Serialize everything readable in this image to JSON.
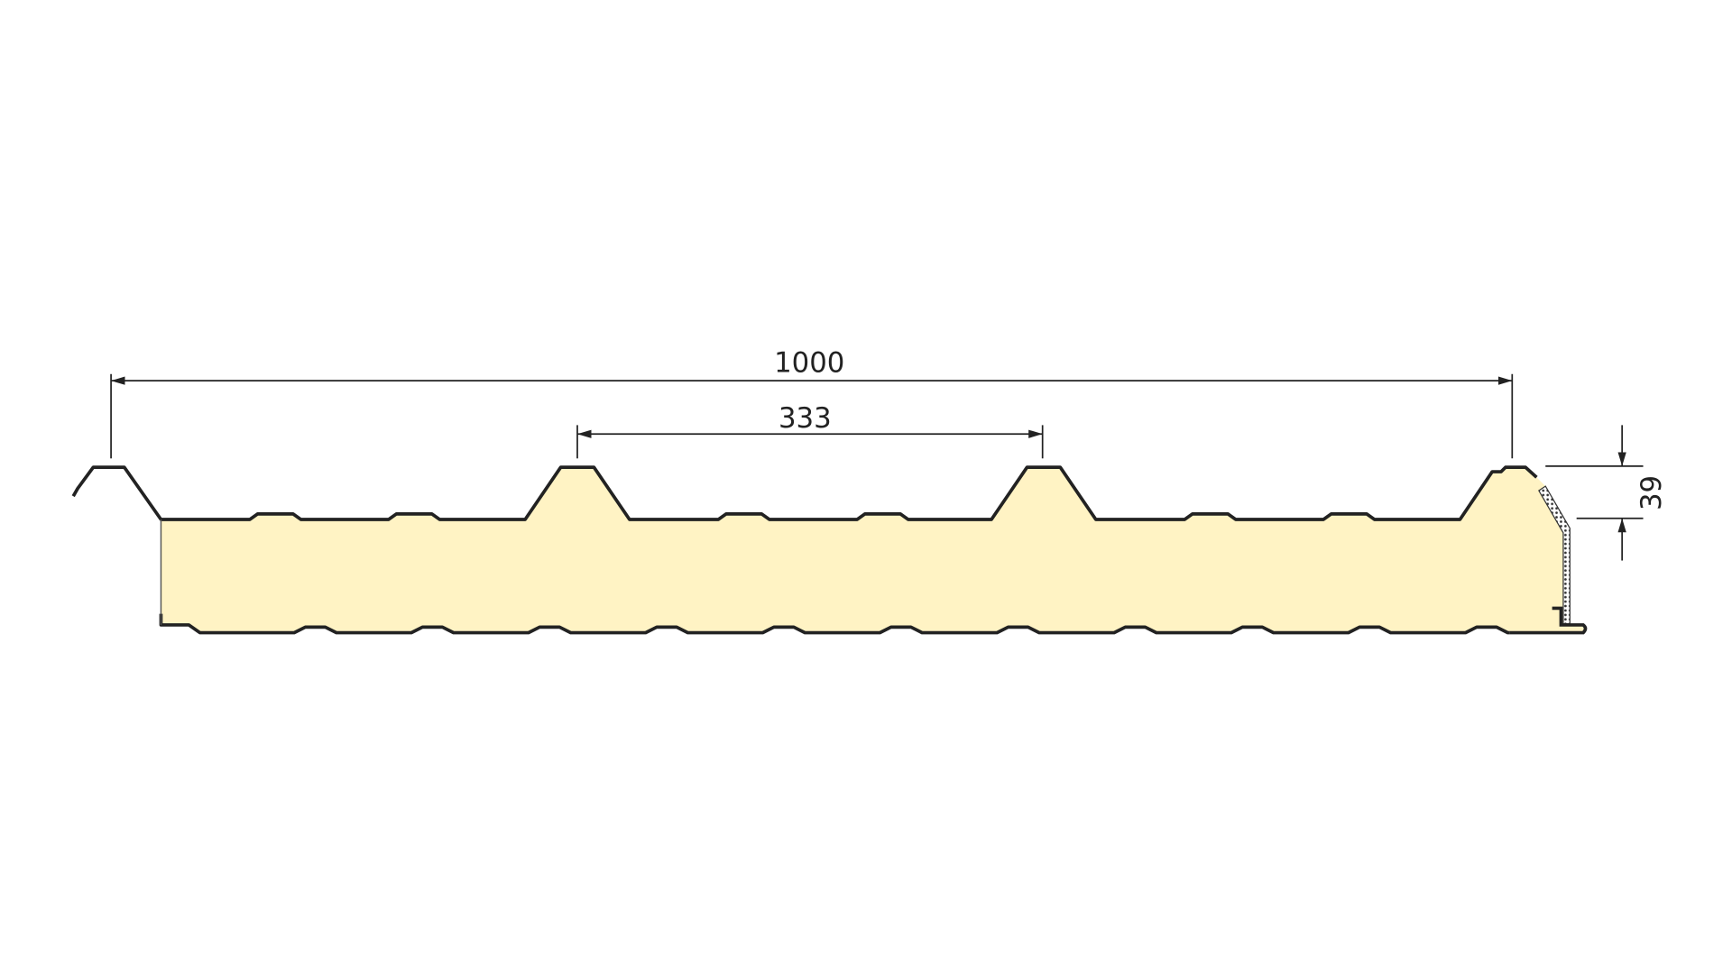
{
  "dimensions": {
    "total_width": "1000",
    "rib_spacing": "333",
    "rib_height": "39"
  },
  "colors": {
    "core_fill": "#FFF3C4",
    "outline": "#222222",
    "background": "#FFFFFF"
  }
}
